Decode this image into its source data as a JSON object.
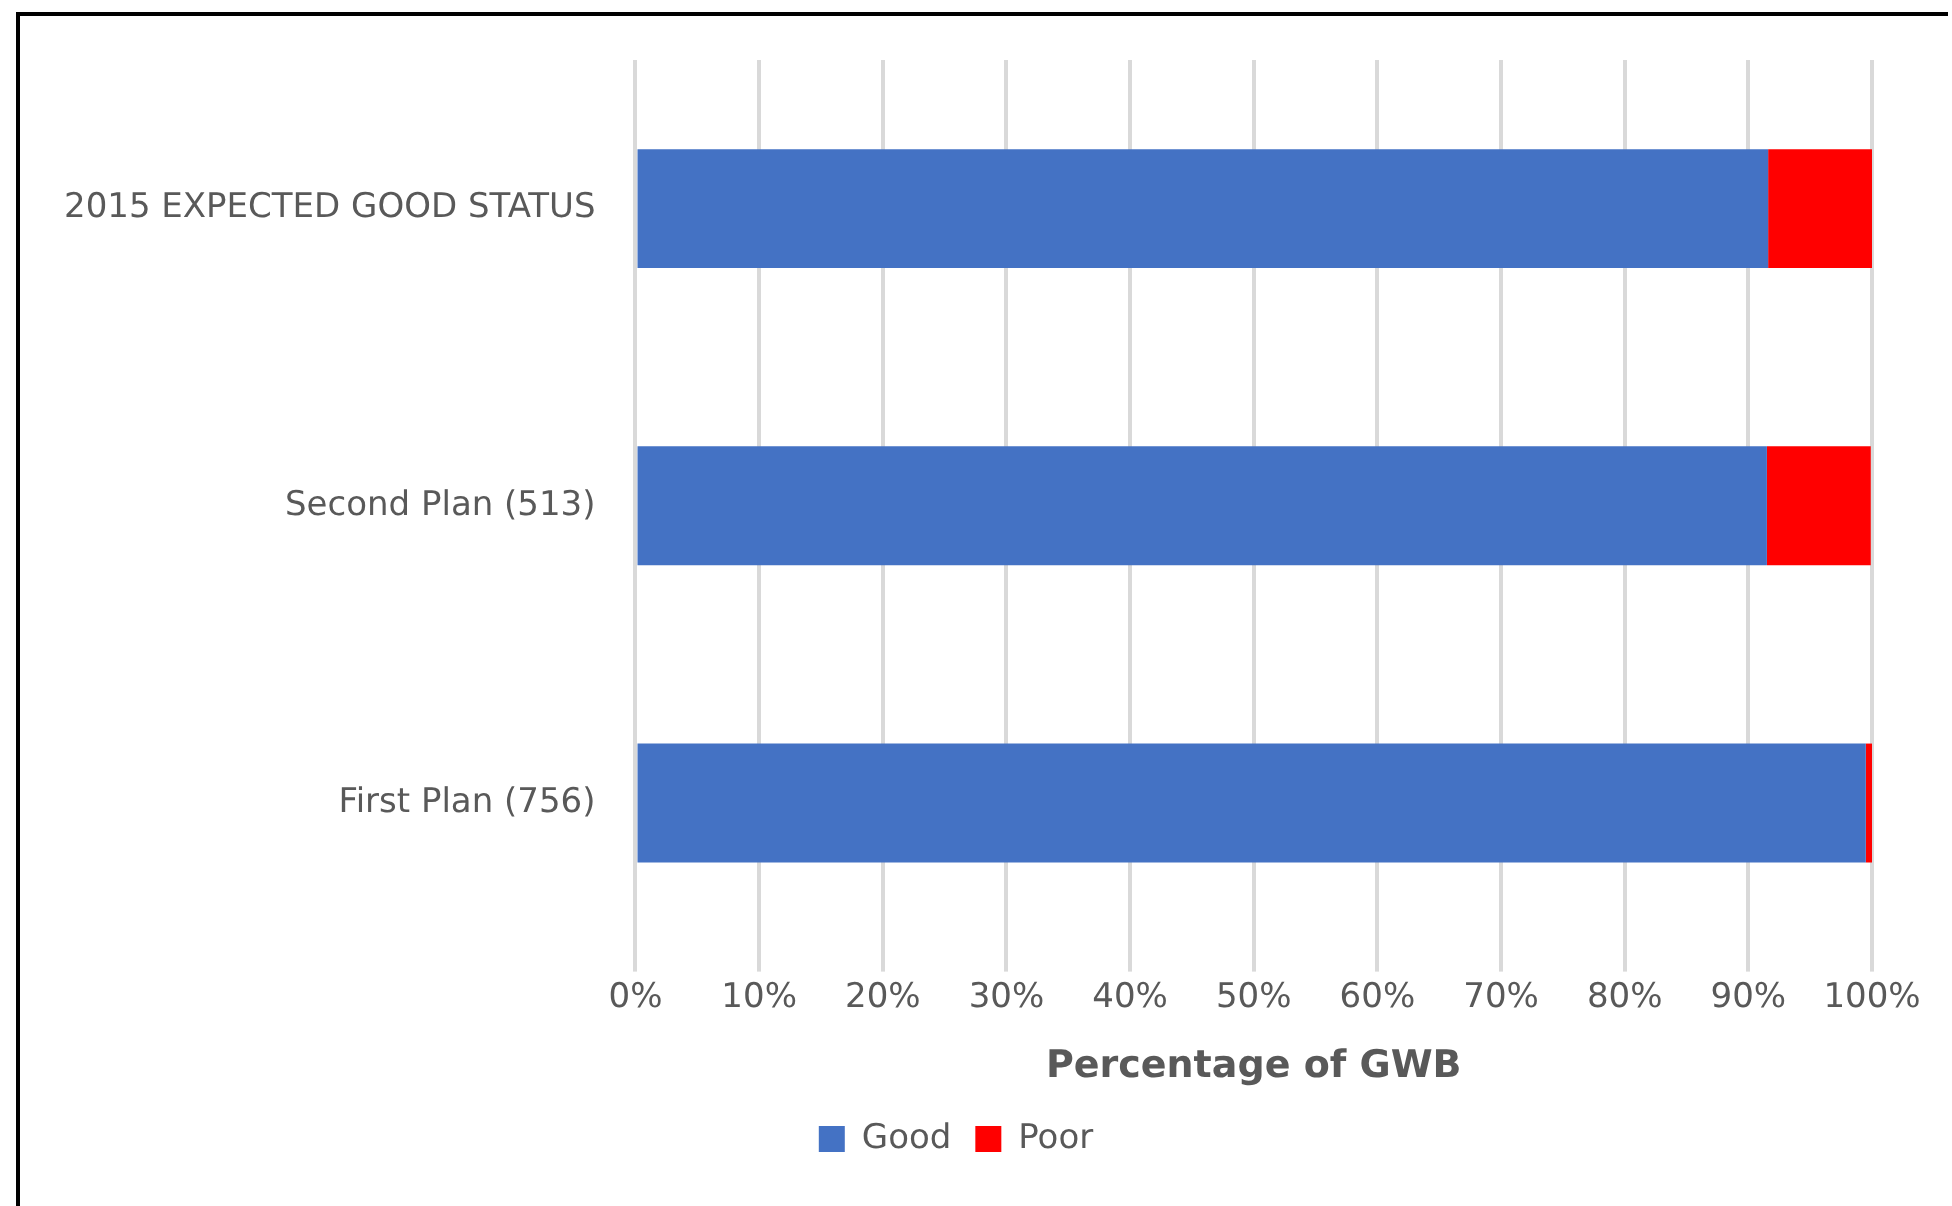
{
  "chart_data": {
    "type": "bar",
    "orientation": "horizontal",
    "stacked": true,
    "categories": [
      "2015 EXPECTED GOOD STATUS",
      "Second Plan (513)",
      "First Plan (756)"
    ],
    "series": [
      {
        "name": "Good",
        "color": "#4472c4",
        "values": [
          91.6,
          91.5,
          99.5
        ]
      },
      {
        "name": "Poor",
        "color": "#ff0000",
        "values": [
          8.4,
          8.4,
          0.5
        ]
      }
    ],
    "xlabel": "Percentage of GWB",
    "xlim": [
      0,
      100
    ],
    "xticks": [
      {
        "value": 0,
        "label": "0%"
      },
      {
        "value": 10,
        "label": "10%"
      },
      {
        "value": 20,
        "label": "20%"
      },
      {
        "value": 30,
        "label": "30%"
      },
      {
        "value": 40,
        "label": "40%"
      },
      {
        "value": 50,
        "label": "50%"
      },
      {
        "value": 60,
        "label": "60%"
      },
      {
        "value": 70,
        "label": "70%"
      },
      {
        "value": 80,
        "label": "80%"
      },
      {
        "value": 90,
        "label": "90%"
      },
      {
        "value": 100,
        "label": "100%"
      }
    ],
    "grid": "x",
    "legend": "bottom"
  }
}
